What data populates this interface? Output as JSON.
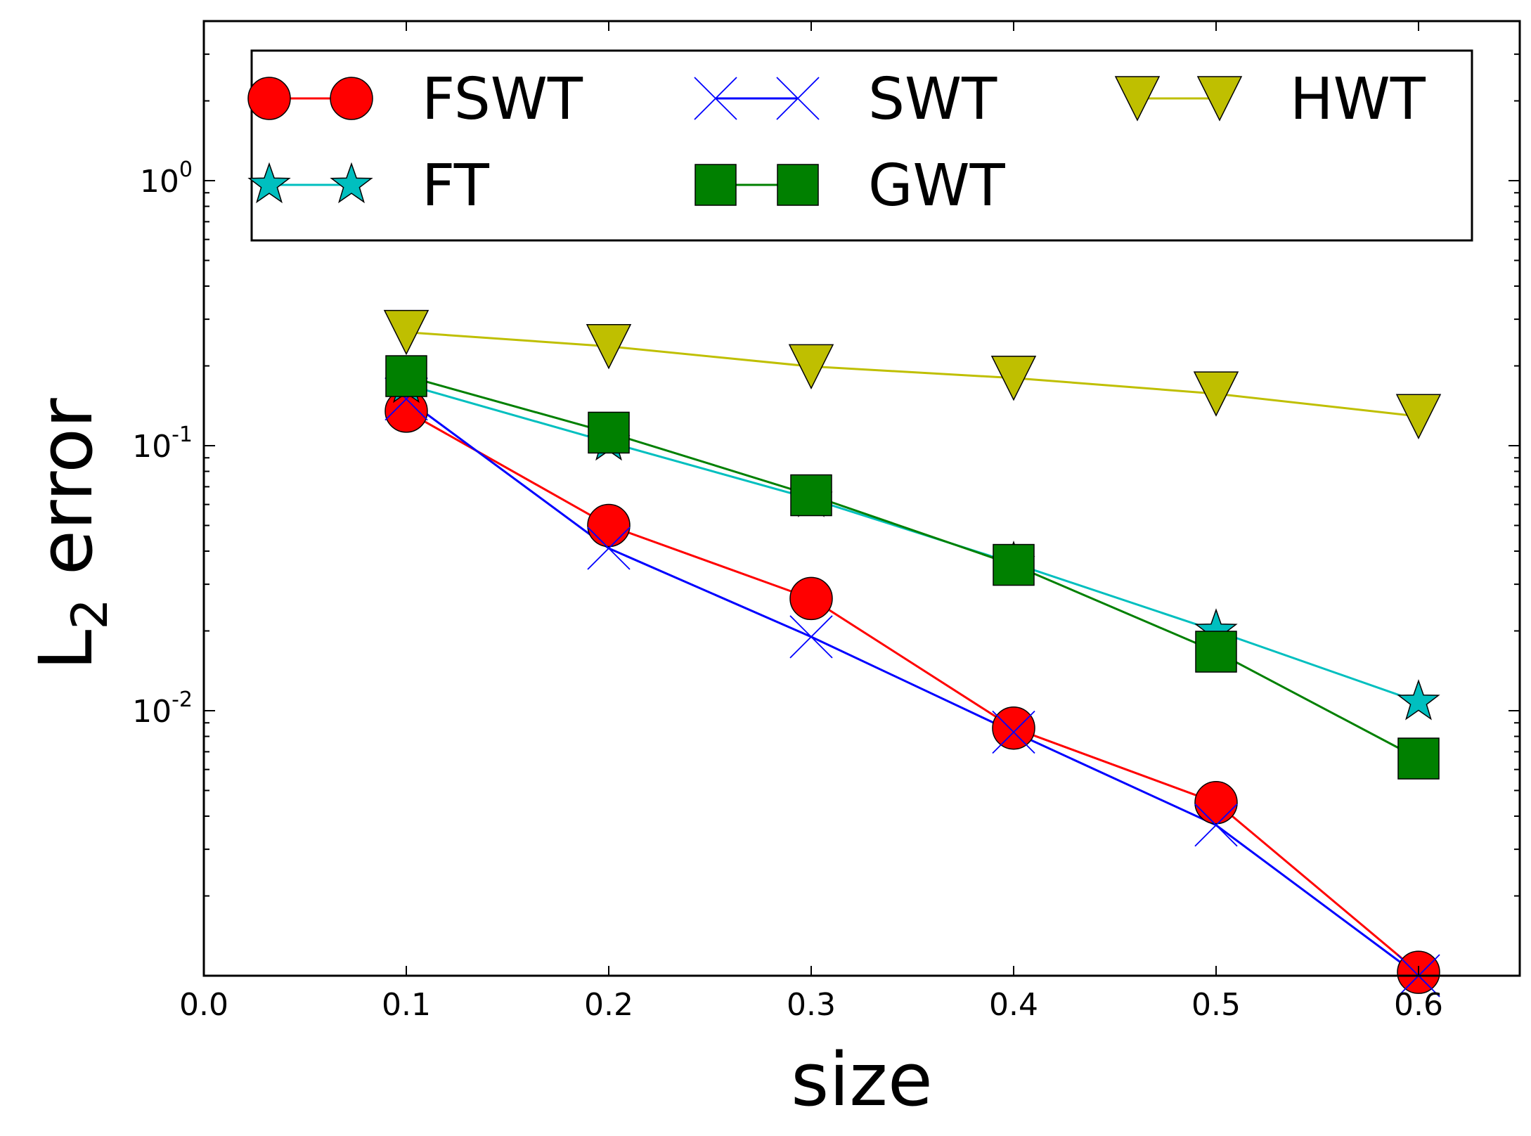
{
  "chart_data": {
    "type": "line",
    "xlabel": "size",
    "ylabel": {
      "main": "L",
      "sub": "2",
      "rest": " error"
    },
    "xlim": [
      0.0,
      0.65
    ],
    "ylim": [
      0.001,
      4.0
    ],
    "yscale": "log",
    "xticks": [
      0.0,
      0.1,
      0.2,
      0.3,
      0.4,
      0.5,
      0.6
    ],
    "xtick_labels": [
      "0.0",
      "0.1",
      "0.2",
      "0.3",
      "0.4",
      "0.5",
      "0.6"
    ],
    "yticks": [
      {
        "value": 1,
        "base": "10",
        "exp": "0"
      },
      {
        "value": 0.1,
        "base": "10",
        "exp": "-1"
      },
      {
        "value": 0.01,
        "base": "10",
        "exp": "-2"
      }
    ],
    "grid": false,
    "legend": {
      "placement": "top",
      "columns": 3
    },
    "x": [
      0.1,
      0.2,
      0.3,
      0.4,
      0.5,
      0.6
    ],
    "series": [
      {
        "name": "FSWT",
        "color": "#ff0000",
        "marker": "circle",
        "values": [
          0.135,
          0.05,
          0.0265,
          0.0086,
          0.0045,
          0.00103
        ]
      },
      {
        "name": "SWT",
        "color": "#0000ff",
        "marker": "x",
        "values": [
          0.15,
          0.041,
          0.019,
          0.0083,
          0.0037,
          0.001
        ]
      },
      {
        "name": "HWT",
        "color": "#bfbf00",
        "marker": "triangle-down",
        "values": [
          0.268,
          0.237,
          0.199,
          0.18,
          0.157,
          0.129
        ]
      },
      {
        "name": "FT",
        "color": "#00bfbf",
        "marker": "star",
        "values": [
          0.17,
          0.103,
          0.063,
          0.036,
          0.02,
          0.0108
        ]
      },
      {
        "name": "GWT",
        "color": "#008000",
        "marker": "square",
        "values": [
          0.183,
          0.112,
          0.065,
          0.0355,
          0.0167,
          0.0066
        ]
      }
    ]
  }
}
